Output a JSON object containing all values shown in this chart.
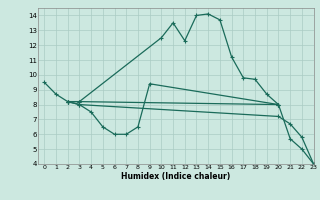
{
  "xlabel": "Humidex (Indice chaleur)",
  "bg_color": "#cce8e0",
  "grid_color": "#aaccc4",
  "line_color": "#1a6b5a",
  "xlim": [
    -0.5,
    23
  ],
  "ylim": [
    4,
    14.5
  ],
  "xticks": [
    0,
    1,
    2,
    3,
    4,
    5,
    6,
    7,
    8,
    9,
    10,
    11,
    12,
    13,
    14,
    15,
    16,
    17,
    18,
    19,
    20,
    21,
    22,
    23
  ],
  "yticks": [
    4,
    5,
    6,
    7,
    8,
    9,
    10,
    11,
    12,
    13,
    14
  ],
  "line1_x": [
    0,
    1,
    2,
    3,
    10,
    11,
    12,
    13,
    14,
    15,
    16,
    17,
    18,
    19,
    20
  ],
  "line1_y": [
    9.5,
    8.7,
    8.2,
    8.2,
    12.5,
    13.5,
    12.3,
    14.0,
    14.1,
    13.7,
    11.2,
    9.8,
    9.7,
    8.7,
    8.0
  ],
  "line2_x": [
    2,
    3,
    4,
    5,
    6,
    7,
    8,
    9,
    20,
    21,
    22,
    23
  ],
  "line2_y": [
    8.2,
    8.0,
    7.5,
    6.5,
    6.0,
    6.0,
    6.5,
    9.4,
    8.0,
    5.7,
    5.0,
    4.0
  ],
  "line3_x": [
    2,
    3,
    20
  ],
  "line3_y": [
    8.2,
    8.2,
    8.0
  ],
  "line4_x": [
    2,
    3,
    20,
    21,
    22,
    23
  ],
  "line4_y": [
    8.2,
    8.0,
    7.2,
    6.7,
    5.8,
    4.0
  ]
}
